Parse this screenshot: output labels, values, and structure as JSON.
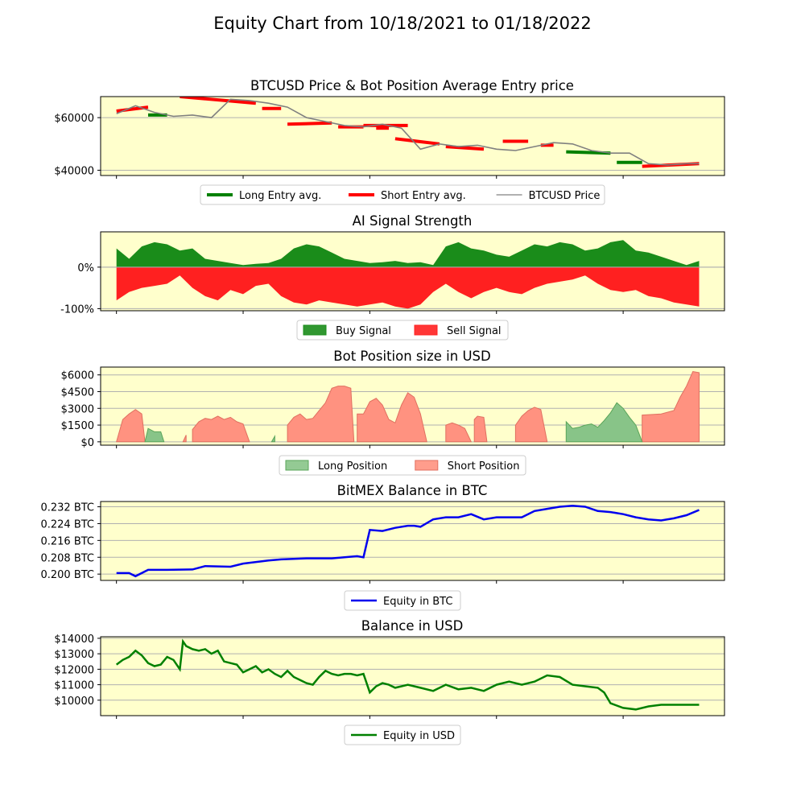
{
  "title": "Equity Chart from 10/18/2021 to 01/18/2022",
  "colors": {
    "panel_bg": "#ffffcc",
    "grid": "#b0b0b0",
    "long": "#008000",
    "short": "#ff0000",
    "price": "#808080",
    "buy": "#1a8c1a",
    "sell": "#ff2020",
    "long_pos": "#88c488",
    "short_pos": "#ff9280",
    "btc_equity": "#0000ee",
    "usd_equity": "#008000"
  },
  "chart_data": [
    {
      "type": "line",
      "title": "BTCUSD Price & Bot Position Average Entry price",
      "y_tick_labels": [
        "$40000",
        "$60000"
      ],
      "y_ticks": [
        40000,
        60000
      ],
      "ylim": [
        38000,
        68000
      ],
      "grid": true,
      "legend": {
        "position": "bottom",
        "entries": [
          "Long Entry avg.",
          "Short Entry avg.",
          "BTCUSD Price"
        ]
      },
      "x": [
        0,
        3,
        6,
        9,
        12,
        15,
        18,
        21,
        24,
        27,
        30,
        33,
        36,
        39,
        42,
        45,
        48,
        51,
        54,
        57,
        60,
        63,
        66,
        69,
        72,
        75,
        78,
        81,
        84,
        87,
        90,
        92
      ],
      "series": [
        {
          "name": "BTCUSD Price",
          "values": [
            61500,
            64500,
            62000,
            60500,
            61000,
            60000,
            67000,
            66500,
            65500,
            64000,
            60000,
            58500,
            57000,
            56500,
            57500,
            56000,
            48000,
            50000,
            49000,
            49500,
            48000,
            47500,
            49000,
            50500,
            50000,
            47500,
            46500,
            46500,
            42500,
            42000,
            42500,
            42500
          ]
        },
        {
          "name": "Short Entry avg.",
          "segments": [
            {
              "x": [
                0,
                5
              ],
              "values": [
                62500,
                64000
              ]
            },
            {
              "x": [
                10,
                22
              ],
              "values": [
                68000,
                65500
              ]
            },
            {
              "x": [
                23,
                26
              ],
              "values": [
                63500,
                63500
              ]
            },
            {
              "x": [
                27,
                34
              ],
              "values": [
                57500,
                58000
              ]
            },
            {
              "x": [
                35,
                39
              ],
              "values": [
                56500,
                56500
              ]
            },
            {
              "x": [
                39,
                46
              ],
              "values": [
                57000,
                57000
              ]
            },
            {
              "x": [
                41,
                43
              ],
              "values": [
                56000,
                56000
              ]
            },
            {
              "x": [
                44,
                51
              ],
              "values": [
                52000,
                50000
              ]
            },
            {
              "x": [
                52,
                58
              ],
              "values": [
                49000,
                48000
              ]
            },
            {
              "x": [
                61,
                65
              ],
              "values": [
                51000,
                51000
              ]
            },
            {
              "x": [
                67,
                69
              ],
              "values": [
                49500,
                49500
              ]
            },
            {
              "x": [
                83,
                92
              ],
              "values": [
                41500,
                42500
              ]
            }
          ]
        },
        {
          "name": "Long Entry avg.",
          "segments": [
            {
              "x": [
                5,
                8
              ],
              "values": [
                61000,
                61000
              ]
            },
            {
              "x": [
                71,
                78
              ],
              "values": [
                47000,
                46500
              ]
            },
            {
              "x": [
                79,
                83
              ],
              "values": [
                43000,
                43000
              ]
            }
          ]
        }
      ]
    },
    {
      "type": "area",
      "title": "AI Signal Strength",
      "y_tick_labels": [
        "-100%",
        "0%"
      ],
      "y_ticks": [
        -100,
        0
      ],
      "ylim": [
        -105,
        85
      ],
      "grid": true,
      "legend": {
        "position": "bottom",
        "entries": [
          "Buy Signal",
          "Sell Signal"
        ]
      },
      "x": [
        0,
        2,
        4,
        6,
        8,
        10,
        12,
        14,
        16,
        18,
        20,
        22,
        24,
        26,
        28,
        30,
        32,
        34,
        36,
        38,
        40,
        42,
        44,
        46,
        48,
        50,
        52,
        54,
        56,
        58,
        60,
        62,
        64,
        66,
        68,
        70,
        72,
        74,
        76,
        78,
        80,
        82,
        84,
        86,
        88,
        90,
        92
      ],
      "series": [
        {
          "name": "Buy Signal",
          "values": [
            45,
            20,
            50,
            60,
            55,
            40,
            45,
            20,
            15,
            10,
            5,
            8,
            10,
            20,
            45,
            55,
            50,
            35,
            20,
            15,
            10,
            12,
            15,
            10,
            12,
            5,
            50,
            60,
            45,
            40,
            30,
            25,
            40,
            55,
            50,
            60,
            55,
            40,
            45,
            60,
            65,
            40,
            35,
            25,
            15,
            5,
            15
          ]
        },
        {
          "name": "Sell Signal",
          "values": [
            -80,
            -60,
            -50,
            -45,
            -40,
            -20,
            -50,
            -70,
            -80,
            -55,
            -65,
            -45,
            -40,
            -70,
            -85,
            -90,
            -80,
            -85,
            -90,
            -95,
            -90,
            -85,
            -95,
            -100,
            -90,
            -60,
            -40,
            -60,
            -75,
            -60,
            -50,
            -60,
            -65,
            -50,
            -40,
            -35,
            -30,
            -20,
            -40,
            -55,
            -60,
            -55,
            -70,
            -75,
            -85,
            -90,
            -95
          ]
        }
      ]
    },
    {
      "type": "area",
      "title": "Bot Position size in USD",
      "y_tick_labels": [
        "$0",
        "$1500",
        "$3000",
        "$4500",
        "$6000"
      ],
      "y_ticks": [
        0,
        1500,
        3000,
        4500,
        6000
      ],
      "ylim": [
        -300,
        6700
      ],
      "grid": true,
      "legend": {
        "position": "bottom",
        "entries": [
          "Long Position",
          "Short Position"
        ]
      },
      "series": [
        {
          "name": "Short Position",
          "segments": [
            {
              "x": [
                0,
                1,
                2,
                3,
                4,
                4.5
              ],
              "values": [
                0,
                2000,
                2500,
                2900,
                2500,
                0
              ]
            },
            {
              "x": [
                10.5,
                11
              ],
              "values": [
                0,
                600
              ]
            },
            {
              "x": [
                12,
                13,
                14,
                15,
                16,
                17,
                18,
                19,
                20,
                21
              ],
              "values": [
                1100,
                1800,
                2100,
                2000,
                2300,
                2000,
                2200,
                1800,
                1600,
                0
              ]
            },
            {
              "x": [
                27,
                28,
                29,
                30,
                31,
                33,
                34,
                35,
                36,
                37,
                37.5
              ],
              "values": [
                1500,
                2200,
                2500,
                2000,
                2100,
                3500,
                4800,
                5000,
                5000,
                4800,
                0
              ]
            },
            {
              "x": [
                38,
                39,
                40,
                41,
                42,
                43,
                44,
                45,
                46,
                47,
                48,
                49
              ],
              "values": [
                2500,
                2500,
                3600,
                3900,
                3300,
                2000,
                1700,
                3300,
                4400,
                4000,
                2500,
                0
              ]
            },
            {
              "x": [
                52,
                53,
                54,
                55,
                56
              ],
              "values": [
                1500,
                1700,
                1500,
                1200,
                0
              ]
            },
            {
              "x": [
                56.5,
                57,
                58,
                58.5
              ],
              "values": [
                2000,
                2300,
                2200,
                0
              ]
            },
            {
              "x": [
                63,
                64,
                65,
                66,
                67,
                68
              ],
              "values": [
                1500,
                2300,
                2800,
                3100,
                2900,
                0
              ]
            },
            {
              "x": [
                83,
                86,
                88,
                89,
                90,
                91,
                92
              ],
              "values": [
                2400,
                2500,
                2800,
                4000,
                5000,
                6300,
                6200
              ]
            }
          ]
        },
        {
          "name": "Long Position",
          "segments": [
            {
              "x": [
                4.5,
                5,
                6,
                7,
                7.5
              ],
              "values": [
                0,
                1200,
                900,
                900,
                0
              ]
            },
            {
              "x": [
                71,
                72,
                73,
                74,
                75,
                76,
                77,
                78,
                79,
                80,
                81,
                82,
                83
              ],
              "values": [
                1800,
                1200,
                1300,
                1500,
                1600,
                1300,
                1900,
                2600,
                3500,
                3000,
                2200,
                1500,
                0
              ]
            },
            {
              "x": [
                24.5,
                25
              ],
              "values": [
                0,
                500
              ]
            }
          ]
        }
      ]
    },
    {
      "type": "line",
      "title": "BitMEX Balance in BTC",
      "y_tick_labels": [
        "0.200 BTC",
        "0.208 BTC",
        "0.216 BTC",
        "0.224 BTC",
        "0.232 BTC"
      ],
      "y_ticks": [
        0.2,
        0.208,
        0.216,
        0.224,
        0.232
      ],
      "ylim": [
        0.197,
        0.2345
      ],
      "grid": true,
      "legend": {
        "position": "bottom",
        "entries": [
          "Equity in BTC"
        ]
      },
      "x": [
        0,
        2,
        3,
        5,
        8,
        12,
        14,
        18,
        20,
        24,
        26,
        30,
        34,
        36,
        38,
        39,
        40,
        42,
        44,
        46,
        47,
        48,
        50,
        52,
        54,
        56,
        58,
        60,
        62,
        64,
        66,
        68,
        70,
        72,
        74,
        76,
        78,
        80,
        82,
        84,
        86,
        88,
        90,
        92
      ],
      "series": [
        {
          "name": "Equity in BTC",
          "values": [
            0.2005,
            0.2005,
            0.199,
            0.202,
            0.202,
            0.2022,
            0.2038,
            0.2035,
            0.205,
            0.2065,
            0.207,
            0.2075,
            0.2075,
            0.208,
            0.2085,
            0.208,
            0.221,
            0.2205,
            0.222,
            0.223,
            0.223,
            0.2225,
            0.226,
            0.227,
            0.227,
            0.2285,
            0.226,
            0.227,
            0.227,
            0.227,
            0.23,
            0.231,
            0.232,
            0.2325,
            0.232,
            0.23,
            0.2295,
            0.2285,
            0.227,
            0.226,
            0.2255,
            0.2265,
            0.228,
            0.2305
          ]
        }
      ]
    },
    {
      "type": "line",
      "title": "Balance in USD",
      "y_tick_labels": [
        "$10000",
        "$11000",
        "$12000",
        "$13000",
        "$14000"
      ],
      "y_ticks": [
        10000,
        11000,
        12000,
        13000,
        14000
      ],
      "ylim": [
        9000,
        14100
      ],
      "grid": true,
      "legend": {
        "position": "bottom",
        "entries": [
          "Equity in USD"
        ]
      },
      "x": [
        0,
        1,
        2,
        3,
        4,
        5,
        6,
        7,
        8,
        9,
        10,
        10.5,
        11,
        12,
        13,
        14,
        15,
        16,
        17,
        18,
        19,
        20,
        21,
        22,
        23,
        24,
        25,
        26,
        27,
        28,
        29,
        30,
        31,
        32,
        33,
        34,
        35,
        36,
        37,
        38,
        39,
        40,
        41,
        42,
        43,
        44,
        46,
        48,
        50,
        52,
        54,
        56,
        58,
        60,
        62,
        64,
        66,
        68,
        70,
        72,
        74,
        76,
        77,
        78,
        80,
        82,
        84,
        86,
        88,
        90,
        92
      ],
      "series": [
        {
          "name": "Equity in USD",
          "values": [
            12300,
            12600,
            12800,
            13200,
            12900,
            12400,
            12200,
            12300,
            12800,
            12600,
            12000,
            13800,
            13500,
            13300,
            13200,
            13300,
            13000,
            13200,
            12500,
            12400,
            12300,
            11800,
            12000,
            12200,
            11800,
            12000,
            11700,
            11500,
            11900,
            11500,
            11300,
            11100,
            11000,
            11500,
            11900,
            11700,
            11600,
            11700,
            11700,
            11600,
            11700,
            10500,
            10900,
            11100,
            11000,
            10800,
            11000,
            10800,
            10600,
            11000,
            10700,
            10800,
            10600,
            11000,
            11200,
            11000,
            11200,
            11600,
            11500,
            11000,
            10900,
            10800,
            10500,
            9800,
            9500,
            9400,
            9600,
            9700,
            9700,
            9700,
            9700
          ]
        }
      ]
    }
  ]
}
